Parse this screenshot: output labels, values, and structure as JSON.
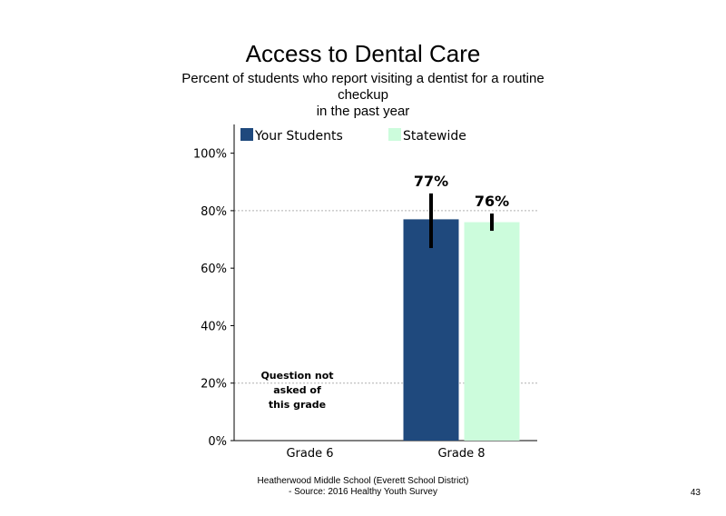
{
  "chart_data": {
    "type": "bar",
    "title": "Access to Dental Care",
    "subtitle_lines": [
      "Percent of students who report visiting a dentist for a routine",
      "checkup",
      "in the past year"
    ],
    "categories": [
      "Grade 6",
      "Grade 8"
    ],
    "series": [
      {
        "name": "Your Students",
        "color": "#1f497d",
        "values": [
          null,
          77
        ],
        "labels": [
          "",
          "77%"
        ],
        "error": [
          null,
          [
            67,
            86
          ]
        ]
      },
      {
        "name": "Statewide",
        "color": "#ccfcdc",
        "values": [
          null,
          76
        ],
        "labels": [
          "",
          "76%"
        ],
        "error": [
          null,
          [
            73,
            79
          ]
        ]
      }
    ],
    "y_ticks": [
      "0%",
      "20%",
      "40%",
      "60%",
      "80%",
      "100%"
    ],
    "ylim": [
      0,
      110
    ],
    "gridlines": [
      20,
      80
    ],
    "legend_position": "top",
    "note_lines": [
      "Question not",
      "asked of",
      "this grade"
    ]
  },
  "footer": {
    "line1": "Heatherwood Middle School (Everett School District)",
    "line2": "- Source: 2016 Healthy Youth Survey"
  },
  "page_number": "43"
}
